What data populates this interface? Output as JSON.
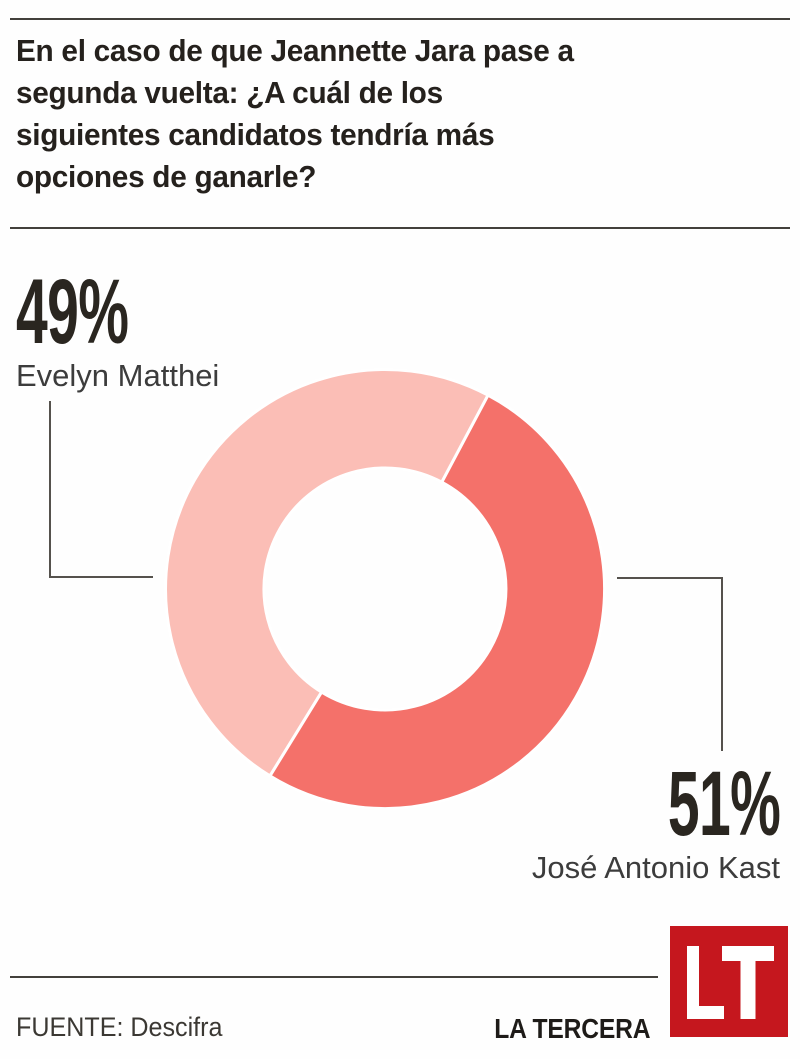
{
  "header": {
    "title_lines": [
      "En el caso de que Jeannette Jara pase a",
      "segunda vuelta: ¿A cuál de los",
      "siguientes candidatos tendría más",
      "opciones de ganarle?"
    ]
  },
  "chart_data": {
    "type": "pie",
    "subtype": "donut",
    "title": "En el caso de que Jeannette Jara pase a segunda vuelta: ¿A cuál de los siguientes candidatos tendría más opciones de ganarle?",
    "slices": [
      {
        "label": "Evelyn Matthei",
        "value": 49,
        "display": "49%",
        "color": "#fbbeb6"
      },
      {
        "label": "José Antonio Kast",
        "value": 51,
        "display": "51%",
        "color": "#f4716a"
      }
    ],
    "start_angle_deg": 211.6,
    "inner_radius_ratio": 0.55,
    "slice_gap_color": "#ffffff",
    "legend_position": "callouts-left-right"
  },
  "footer": {
    "source": "FUENTE: Descifra",
    "brand": "LA TERCERA",
    "logo_text": "LT",
    "logo_color": "#c5171e"
  }
}
